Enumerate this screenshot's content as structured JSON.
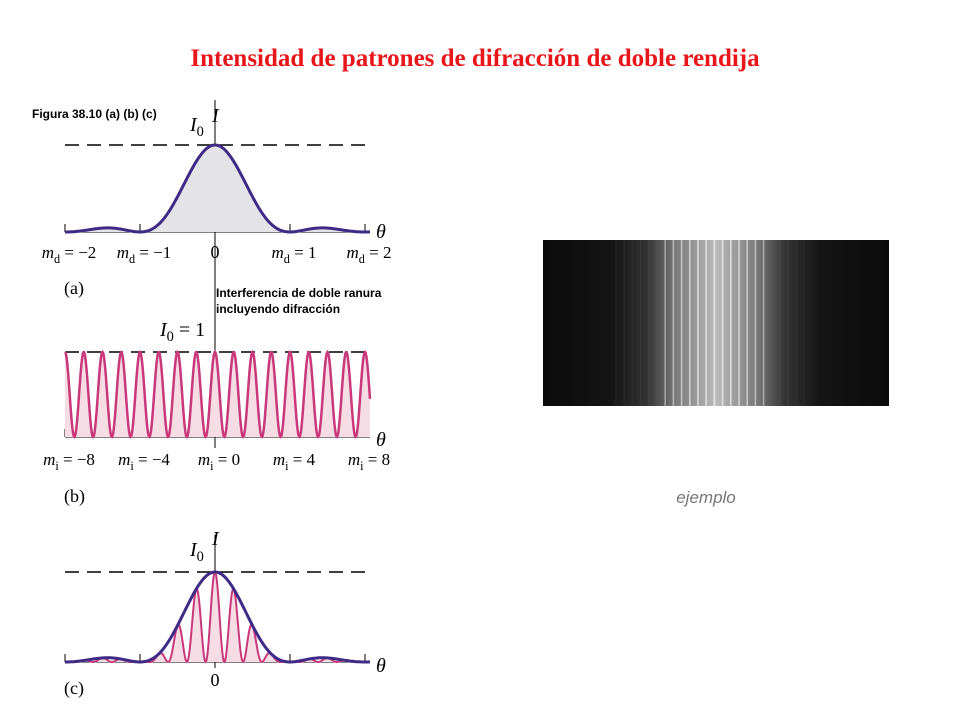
{
  "title": "Intensidad de patrones de difracción de doble rendija",
  "figure_caption": "Figura 38.10 (a) (b) (c)",
  "annotation": [
    "Interferencia de doble ranura",
    "incluyendo difracción"
  ],
  "panel_a": {
    "label": "(a)",
    "axis_y": "I",
    "peak": {
      "symbol": "I",
      "sub": "0"
    },
    "axis_x": "θ",
    "center": "0",
    "ticks": [
      {
        "symbol": "m",
        "sub": "d",
        "value": " = −2"
      },
      {
        "symbol": "m",
        "sub": "d",
        "value": " = −1"
      },
      {
        "symbol": "m",
        "sub": "d",
        "value": " = 1"
      },
      {
        "symbol": "m",
        "sub": "d",
        "value": " = 2"
      }
    ]
  },
  "panel_b": {
    "label": "(b)",
    "peak": {
      "symbol": "I",
      "sub": "0",
      "value": " = 1"
    },
    "axis_x": "θ",
    "ticks": [
      {
        "symbol": "m",
        "sub": "i",
        "value": " = −8"
      },
      {
        "symbol": "m",
        "sub": "i",
        "value": " = −4"
      },
      {
        "symbol": "m",
        "sub": "i",
        "value": " = 0"
      },
      {
        "symbol": "m",
        "sub": "i",
        "value": " = 4"
      },
      {
        "symbol": "m",
        "sub": "i",
        "value": " = 8"
      }
    ]
  },
  "panel_c": {
    "label": "(c)",
    "axis_y": "I",
    "peak": {
      "symbol": "I",
      "sub": "0"
    },
    "axis_x": "θ",
    "center": "0"
  },
  "example_caption": "ejemplo"
}
